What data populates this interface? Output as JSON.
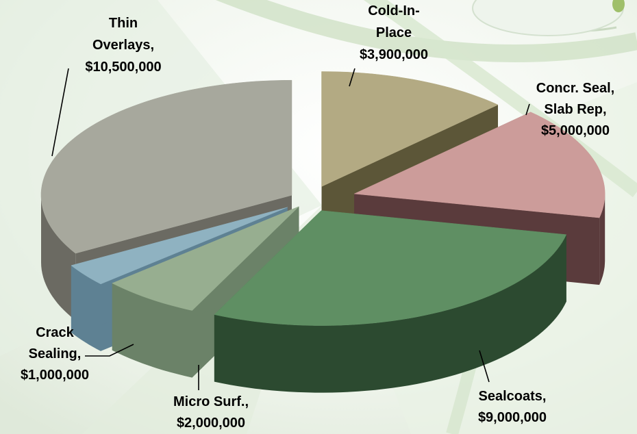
{
  "chart_data": {
    "type": "pie",
    "title": "",
    "style": "3d-exploded",
    "currency": "$",
    "slices": [
      {
        "label": [
          "Cold-In-",
          "Place"
        ],
        "value": 3900000,
        "color": "#b3aa83",
        "side_color": "#5c5638"
      },
      {
        "label": [
          "Concr. Seal,",
          "Slab Rep,"
        ],
        "value": 5000000,
        "color": "#cc9c9a",
        "side_color": "#5a3b3c"
      },
      {
        "label": [
          "Sealcoats,"
        ],
        "value": 9000000,
        "color": "#5f8f63",
        "side_color": "#2c4a30"
      },
      {
        "label": [
          "Micro Surf.,"
        ],
        "value": 2000000,
        "color": "#97ae90",
        "side_color": "#6b8268"
      },
      {
        "label": [
          "Crack",
          "Sealing,"
        ],
        "value": 1000000,
        "color": "#8fb2c1",
        "side_color": "#5e8193"
      },
      {
        "label": [
          "Thin",
          "Overlays,"
        ],
        "value": 10500000,
        "color": "#a7a89d",
        "side_color": "#6b6a62"
      }
    ]
  }
}
